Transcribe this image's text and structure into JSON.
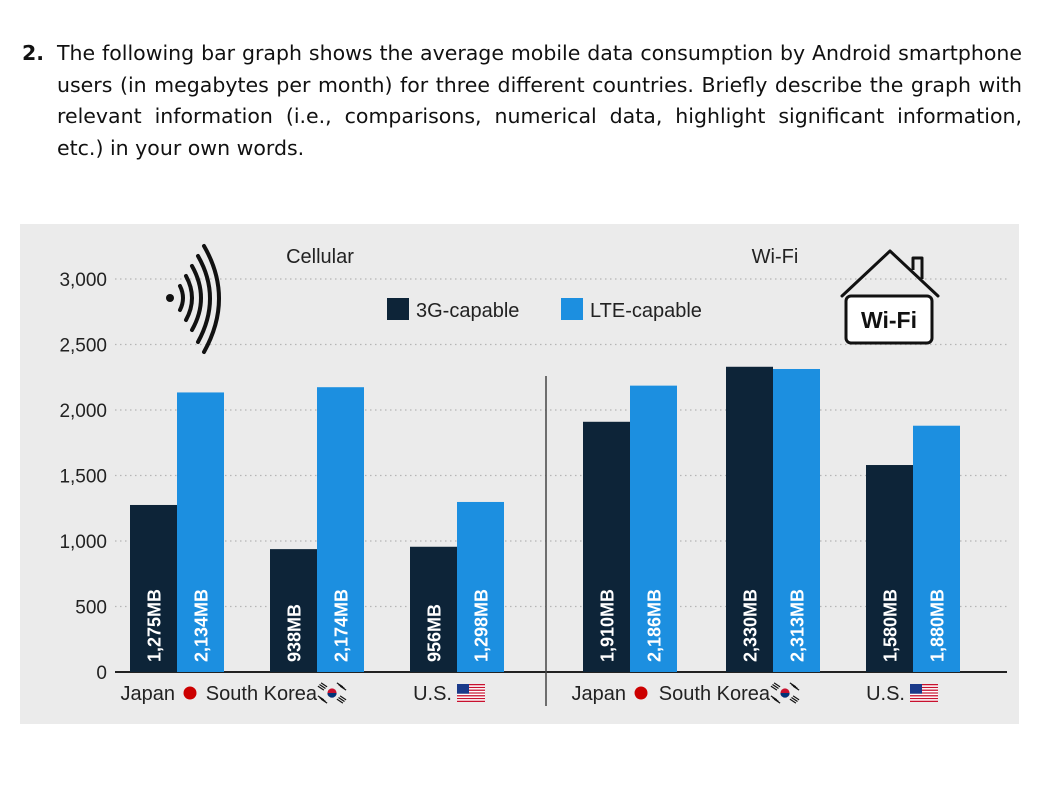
{
  "question": {
    "number": "2.",
    "text": "The following bar graph shows the average mobile data consumption by Android smartphone users (in megabytes per month) for three different countries. Briefly describe the graph with relevant information (i.e., comparisons, numerical data, highlight significant information, etc.) in your own words."
  },
  "colors": {
    "background": "#ebebeb",
    "series_3g": "#0d2438",
    "series_lte": "#1c8fe0",
    "gridline": "#b5b5b5",
    "japan_flag_dot": "#cc0000"
  },
  "icons": {
    "cellular": "wifi-signal-icon",
    "wifi": "house-icon",
    "japan": "japan-flag-icon",
    "korea": "south-korea-flag-icon",
    "us": "us-flag-icon"
  },
  "chart_data": {
    "type": "bar",
    "title": "",
    "xlabel": "",
    "ylabel": "",
    "ylim": [
      0,
      3000
    ],
    "yticks": [
      0,
      500,
      1000,
      1500,
      2000,
      2500,
      3000
    ],
    "ytick_labels": [
      "0",
      "500",
      "1,000",
      "1,500",
      "2,000",
      "2,500",
      "3,000"
    ],
    "grid": "horizontal dotted",
    "legend": "top-center",
    "wifi_badge_label": "Wi-Fi",
    "groups": [
      {
        "name": "Cellular",
        "categories": [
          "Japan",
          "South Korea",
          "U.S."
        ],
        "series": [
          {
            "name": "3G-capable",
            "values": [
              1275,
              938,
              956
            ],
            "labels": [
              "1,275MB",
              "938MB",
              "956MB"
            ]
          },
          {
            "name": "LTE-capable",
            "values": [
              2134,
              2174,
              1298
            ],
            "labels": [
              "2,134MB",
              "2,174MB",
              "1,298MB"
            ]
          }
        ]
      },
      {
        "name": "Wi-Fi",
        "categories": [
          "Japan",
          "South Korea",
          "U.S."
        ],
        "series": [
          {
            "name": "3G-capable",
            "values": [
              1910,
              2330,
              1580
            ],
            "labels": [
              "1,910MB",
              "2,330MB",
              "1,580MB"
            ]
          },
          {
            "name": "LTE-capable",
            "values": [
              2186,
              2313,
              1880
            ],
            "labels": [
              "2,186MB",
              "2,313MB",
              "1,880MB"
            ]
          }
        ]
      }
    ]
  }
}
